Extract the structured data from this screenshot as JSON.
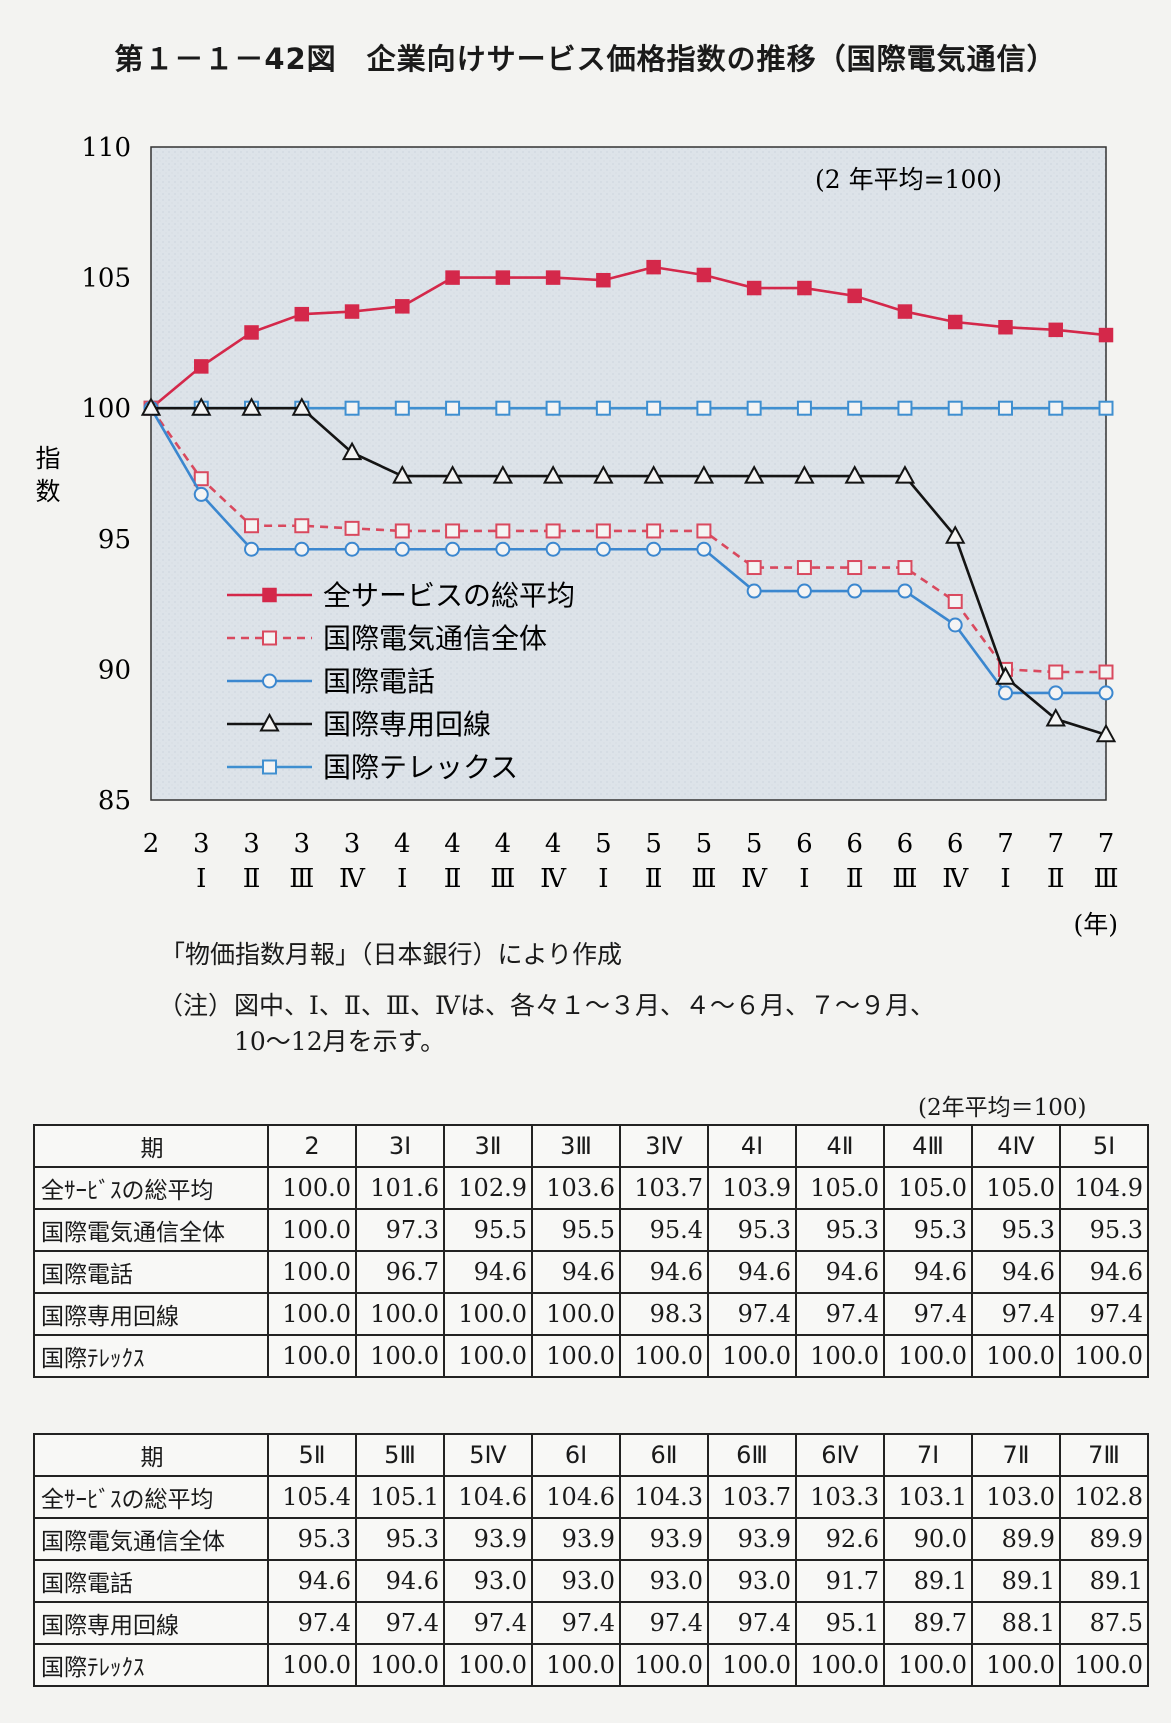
{
  "title": "第１－１－42図　企業向けサービス価格指数の推移（国際電気通信）",
  "source_note": "「物価指数月報」（日本銀行）により作成",
  "footnote_label": "（注）",
  "footnote_line1": "図中、Ⅰ、Ⅱ、Ⅲ、Ⅳは、各々１～３月、４～６月、７～９月、",
  "footnote_line2": "10～12月を示す。",
  "table_unit": "(2年平均＝100)",
  "colors": {
    "plot_bg": "#dde3e9",
    "red": "#d4284a",
    "pink": "#d9495e",
    "blue": "#3b87cf",
    "black": "#141414",
    "teal": "#3f8fd0"
  },
  "chart_data": {
    "type": "line",
    "title": "",
    "annotation": "(2 年平均=100)",
    "ylabel": "指数",
    "xlabel_unit": "(年)",
    "ylim": [
      85,
      110
    ],
    "y_ticks": [
      110,
      105,
      100,
      95,
      90,
      85
    ],
    "grid": false,
    "legend_position": "bottom-left",
    "x_years": [
      "2",
      "3",
      "3",
      "3",
      "3",
      "4",
      "4",
      "4",
      "4",
      "5",
      "5",
      "5",
      "5",
      "6",
      "6",
      "6",
      "6",
      "7",
      "7",
      "7"
    ],
    "x_quarters": [
      "",
      "Ⅰ",
      "Ⅱ",
      "Ⅲ",
      "Ⅳ",
      "Ⅰ",
      "Ⅱ",
      "Ⅲ",
      "Ⅳ",
      "Ⅰ",
      "Ⅱ",
      "Ⅲ",
      "Ⅳ",
      "Ⅰ",
      "Ⅱ",
      "Ⅲ",
      "Ⅳ",
      "Ⅰ",
      "Ⅱ",
      "Ⅲ"
    ],
    "series": [
      {
        "name": "全サービスの総平均",
        "color": "#d4284a",
        "dash": false,
        "marker": "filled-square",
        "values": [
          100.0,
          101.6,
          102.9,
          103.6,
          103.7,
          103.9,
          105.0,
          105.0,
          105.0,
          104.9,
          105.4,
          105.1,
          104.6,
          104.6,
          104.3,
          103.7,
          103.3,
          103.1,
          103.0,
          102.8
        ]
      },
      {
        "name": "国際電気通信全体",
        "color": "#d9495e",
        "dash": true,
        "marker": "open-square",
        "values": [
          100.0,
          97.3,
          95.5,
          95.5,
          95.4,
          95.3,
          95.3,
          95.3,
          95.3,
          95.3,
          95.3,
          95.3,
          93.9,
          93.9,
          93.9,
          93.9,
          92.6,
          90.0,
          89.9,
          89.9
        ]
      },
      {
        "name": "国際電話",
        "color": "#3b87cf",
        "dash": false,
        "marker": "open-circle",
        "values": [
          100.0,
          96.7,
          94.6,
          94.6,
          94.6,
          94.6,
          94.6,
          94.6,
          94.6,
          94.6,
          94.6,
          94.6,
          93.0,
          93.0,
          93.0,
          93.0,
          91.7,
          89.1,
          89.1,
          89.1
        ]
      },
      {
        "name": "国際専用回線",
        "color": "#141414",
        "dash": false,
        "marker": "open-triangle",
        "values": [
          100.0,
          100.0,
          100.0,
          100.0,
          98.3,
          97.4,
          97.4,
          97.4,
          97.4,
          97.4,
          97.4,
          97.4,
          97.4,
          97.4,
          97.4,
          97.4,
          95.1,
          89.7,
          88.1,
          87.5
        ]
      },
      {
        "name": "国際テレックス",
        "color": "#3f8fd0",
        "dash": false,
        "marker": "open-square",
        "values": [
          100.0,
          100.0,
          100.0,
          100.0,
          100.0,
          100.0,
          100.0,
          100.0,
          100.0,
          100.0,
          100.0,
          100.0,
          100.0,
          100.0,
          100.0,
          100.0,
          100.0,
          100.0,
          100.0,
          100.0
        ]
      }
    ]
  },
  "table1": {
    "header_label": "期",
    "periods": [
      "2",
      "3Ⅰ",
      "3Ⅱ",
      "3Ⅲ",
      "3Ⅳ",
      "4Ⅰ",
      "4Ⅱ",
      "4Ⅲ",
      "4Ⅳ",
      "5Ⅰ"
    ],
    "rows": [
      {
        "label": "全ｻｰﾋﾞｽの総平均",
        "values": [
          "100.0",
          "101.6",
          "102.9",
          "103.6",
          "103.7",
          "103.9",
          "105.0",
          "105.0",
          "105.0",
          "104.9"
        ]
      },
      {
        "label": "国際電気通信全体",
        "values": [
          "100.0",
          "97.3",
          "95.5",
          "95.5",
          "95.4",
          "95.3",
          "95.3",
          "95.3",
          "95.3",
          "95.3"
        ]
      },
      {
        "label": "国際電話",
        "values": [
          "100.0",
          "96.7",
          "94.6",
          "94.6",
          "94.6",
          "94.6",
          "94.6",
          "94.6",
          "94.6",
          "94.6"
        ]
      },
      {
        "label": "国際専用回線",
        "values": [
          "100.0",
          "100.0",
          "100.0",
          "100.0",
          "98.3",
          "97.4",
          "97.4",
          "97.4",
          "97.4",
          "97.4"
        ]
      },
      {
        "label": "国際ﾃﾚｯｸｽ",
        "values": [
          "100.0",
          "100.0",
          "100.0",
          "100.0",
          "100.0",
          "100.0",
          "100.0",
          "100.0",
          "100.0",
          "100.0"
        ]
      }
    ]
  },
  "table2": {
    "header_label": "期",
    "periods": [
      "5Ⅱ",
      "5Ⅲ",
      "5Ⅳ",
      "6Ⅰ",
      "6Ⅱ",
      "6Ⅲ",
      "6Ⅳ",
      "7Ⅰ",
      "7Ⅱ",
      "7Ⅲ"
    ],
    "rows": [
      {
        "label": "全ｻｰﾋﾞｽの総平均",
        "values": [
          "105.4",
          "105.1",
          "104.6",
          "104.6",
          "104.3",
          "103.7",
          "103.3",
          "103.1",
          "103.0",
          "102.8"
        ]
      },
      {
        "label": "国際電気通信全体",
        "values": [
          "95.3",
          "95.3",
          "93.9",
          "93.9",
          "93.9",
          "93.9",
          "92.6",
          "90.0",
          "89.9",
          "89.9"
        ]
      },
      {
        "label": "国際電話",
        "values": [
          "94.6",
          "94.6",
          "93.0",
          "93.0",
          "93.0",
          "93.0",
          "91.7",
          "89.1",
          "89.1",
          "89.1"
        ]
      },
      {
        "label": "国際専用回線",
        "values": [
          "97.4",
          "97.4",
          "97.4",
          "97.4",
          "97.4",
          "97.4",
          "95.1",
          "89.7",
          "88.1",
          "87.5"
        ]
      },
      {
        "label": "国際ﾃﾚｯｸｽ",
        "values": [
          "100.0",
          "100.0",
          "100.0",
          "100.0",
          "100.0",
          "100.0",
          "100.0",
          "100.0",
          "100.0",
          "100.0"
        ]
      }
    ]
  }
}
